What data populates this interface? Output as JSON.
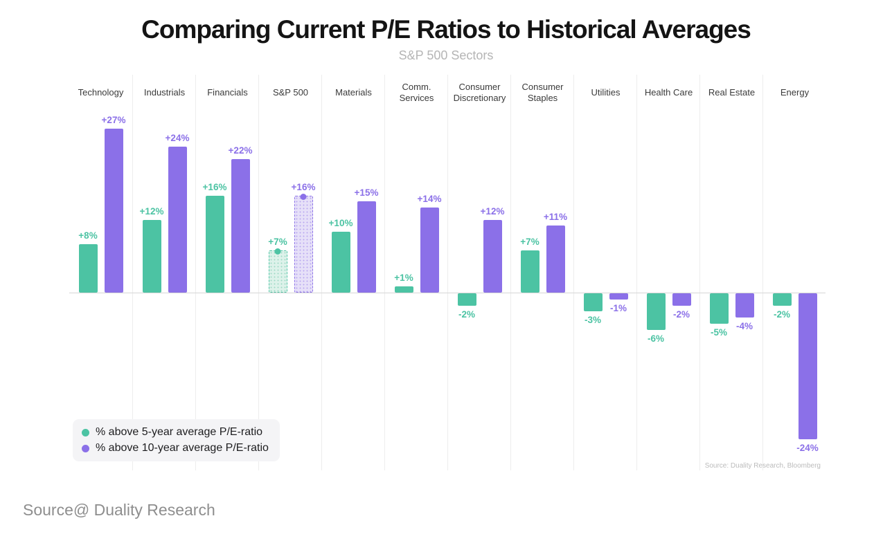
{
  "chart_data": {
    "type": "bar",
    "title": "Comparing Current P/E Ratios to Historical Averages",
    "subtitle": "S&P 500 Sectors",
    "categories": [
      "Technology",
      "Industrials",
      "Financials",
      "S&P 500",
      "Materials",
      "Comm. Services",
      "Consumer Discretionary",
      "Consumer Staples",
      "Utilities",
      "Health Care",
      "Real Estate",
      "Energy"
    ],
    "series": [
      {
        "name": "% above 5-year average P/E-ratio",
        "color": "#4cc3a3",
        "highlight_fill": "#ddf2ea",
        "highlight_dot": "#9fd9c6",
        "values": [
          8,
          12,
          16,
          7,
          10,
          1,
          -2,
          7,
          -3,
          -6,
          -5,
          -2
        ]
      },
      {
        "name": "% above 10-year average P/E-ratio",
        "color": "#8b70e8",
        "highlight_fill": "#e6e0f8",
        "highlight_dot": "#b9a8f0",
        "values": [
          27,
          24,
          22,
          16,
          15,
          14,
          12,
          11,
          -1,
          -2,
          -4,
          -24
        ]
      }
    ],
    "value_label_format": "signed_percent",
    "highlight_category": "S&P 500",
    "highlight_style": "dotted estimate bars with round marker on top",
    "ylim": [
      -26,
      29
    ],
    "grid": "vertical category separators, horizontal zero baseline",
    "legend_position": "bottom-left",
    "source_note": "Source: Duality Research, Bloomberg"
  },
  "footer": {
    "source_line": "Source@ Duality Research"
  },
  "colors": {
    "background": "#ffffff",
    "grid_line": "#ededed",
    "zero_line": "#d7d7d7",
    "title_text": "#141414",
    "subtitle_text": "#b5b5b5",
    "legend_background": "#f4f4f6"
  }
}
